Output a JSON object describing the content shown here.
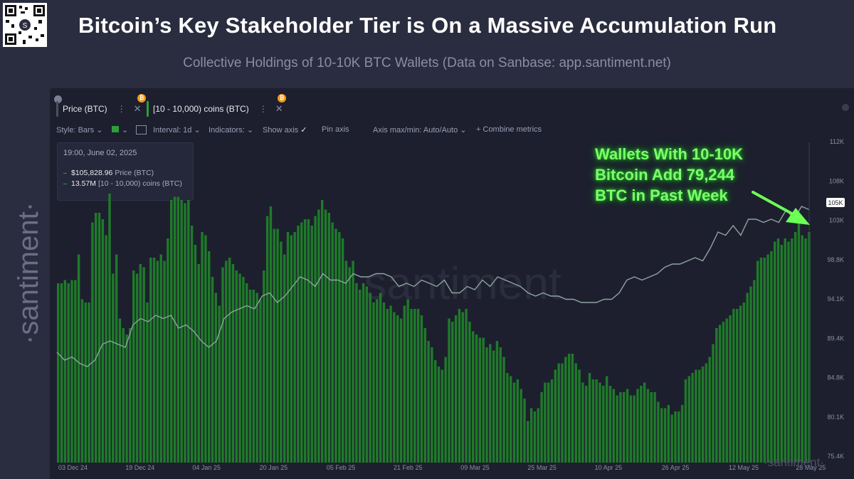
{
  "header": {
    "title": "Bitcoin’s Key Stakeholder Tier is On a Massive Accumulation Run",
    "subtitle": "Collective Holdings of 10-10K BTC Wallets (Data on Sanbase: app.santiment.net)"
  },
  "brand": {
    "side_logo": "·santiment·",
    "watermark": "santiment",
    "corner_logo": "·santiment·"
  },
  "metrics": [
    {
      "label": "Price (BTC)",
      "color": "#4a4f63",
      "badge": "lock-icon"
    },
    {
      "label": "[10 - 10,000) coins (BTC)",
      "color": "#2e9d3a",
      "badge": "bitcoin-icon"
    }
  ],
  "toolbar": {
    "style_label": "Style: Bars",
    "interval_label": "Interval: 1d",
    "indicators_label": "Indicators:",
    "show_axis_label": "Show axis",
    "pin_axis_label": "Pin axis",
    "axis_label": "Axis max/min: Auto/Auto",
    "combine_label": "Combine metrics"
  },
  "tooltip": {
    "date": "19:00, June 02, 2025",
    "price_value": "$105,828.96",
    "price_label": "Price (BTC)",
    "holdings_value": "13.57M",
    "holdings_label": "[10 - 10,000) coins (BTC)"
  },
  "annotation": {
    "line1": "Wallets With 10-10K",
    "line2": "Bitcoin  Add 79,244",
    "line3": "BTC in Past Week"
  },
  "colors": {
    "accent": "#7bff6a",
    "bar": "#1f7a2a",
    "line": "#8fa5a0",
    "background": "#1d1f2e",
    "btc": "#f29b1d"
  },
  "chart_data": {
    "type": "bar",
    "x_tick_labels": [
      "03 Dec 24",
      "19 Dec 24",
      "04 Jan 25",
      "20 Jan 25",
      "05 Feb 25",
      "21 Feb 25",
      "09 Mar 25",
      "25 Mar 25",
      "10 Apr 25",
      "26 Apr 25",
      "12 May 25",
      "28 May 25"
    ],
    "y_tick_labels": [
      "112K",
      "108K",
      "103K",
      "98.8K",
      "94.1K",
      "89.4K",
      "84.8K",
      "80.1K",
      "75.4K"
    ],
    "ylim": [
      74000,
      112000
    ],
    "current_price_label": "105K",
    "price_series_name": "Price (BTC)",
    "holdings_series_name": "[10 - 10,000) coins (BTC)",
    "bar_heights": [
      0.56,
      0.56,
      0.57,
      0.56,
      0.57,
      0.57,
      0.65,
      0.51,
      0.5,
      0.5,
      0.75,
      0.78,
      0.78,
      0.76,
      0.71,
      0.84,
      0.59,
      0.65,
      0.45,
      0.42,
      0.4,
      0.42,
      0.6,
      0.59,
      0.62,
      0.61,
      0.5,
      0.64,
      0.64,
      0.63,
      0.65,
      0.63,
      0.7,
      0.82,
      0.83,
      0.83,
      0.82,
      0.81,
      0.82,
      0.74,
      0.68,
      0.62,
      0.72,
      0.71,
      0.66,
      0.58,
      0.53,
      0.49,
      0.61,
      0.63,
      0.64,
      0.62,
      0.6,
      0.59,
      0.58,
      0.56,
      0.54,
      0.54,
      0.53,
      0.51,
      0.6,
      0.77,
      0.8,
      0.73,
      0.73,
      0.69,
      0.65,
      0.72,
      0.71,
      0.72,
      0.74,
      0.75,
      0.76,
      0.76,
      0.74,
      0.77,
      0.79,
      0.82,
      0.79,
      0.78,
      0.75,
      0.73,
      0.72,
      0.7,
      0.63,
      0.61,
      0.63,
      0.56,
      0.54,
      0.56,
      0.55,
      0.53,
      0.5,
      0.51,
      0.53,
      0.5,
      0.48,
      0.49,
      0.47,
      0.46,
      0.45,
      0.49,
      0.51,
      0.48,
      0.48,
      0.48,
      0.46,
      0.42,
      0.38,
      0.36,
      0.32,
      0.3,
      0.29,
      0.33,
      0.45,
      0.44,
      0.46,
      0.48,
      0.47,
      0.48,
      0.44,
      0.41,
      0.4,
      0.39,
      0.39,
      0.36,
      0.37,
      0.35,
      0.38,
      0.36,
      0.33,
      0.28,
      0.27,
      0.25,
      0.26,
      0.23,
      0.2,
      0.13,
      0.17,
      0.16,
      0.17,
      0.22,
      0.25,
      0.25,
      0.26,
      0.29,
      0.31,
      0.31,
      0.33,
      0.34,
      0.34,
      0.31,
      0.29,
      0.25,
      0.24,
      0.28,
      0.26,
      0.26,
      0.25,
      0.24,
      0.27,
      0.24,
      0.23,
      0.21,
      0.22,
      0.22,
      0.23,
      0.21,
      0.21,
      0.23,
      0.24,
      0.25,
      0.23,
      0.22,
      0.22,
      0.19,
      0.17,
      0.17,
      0.18,
      0.15,
      0.16,
      0.16,
      0.18,
      0.26,
      0.27,
      0.28,
      0.29,
      0.29,
      0.3,
      0.31,
      0.33,
      0.37,
      0.42,
      0.43,
      0.44,
      0.45,
      0.46,
      0.48,
      0.48,
      0.49,
      0.5,
      0.53,
      0.55,
      0.57,
      0.63,
      0.64,
      0.64,
      0.65,
      0.66,
      0.69,
      0.7,
      0.68,
      0.7,
      0.69,
      0.7,
      0.72,
      0.75,
      0.71,
      0.7,
      0.72
    ],
    "price_curve": [
      0.345,
      0.32,
      0.33,
      0.31,
      0.3,
      0.32,
      0.37,
      0.38,
      0.37,
      0.36,
      0.43,
      0.45,
      0.44,
      0.46,
      0.45,
      0.46,
      0.42,
      0.43,
      0.41,
      0.38,
      0.36,
      0.38,
      0.45,
      0.47,
      0.48,
      0.49,
      0.48,
      0.52,
      0.53,
      0.5,
      0.52,
      0.55,
      0.58,
      0.57,
      0.55,
      0.59,
      0.57,
      0.57,
      0.56,
      0.59,
      0.58,
      0.58,
      0.59,
      0.59,
      0.58,
      0.55,
      0.56,
      0.55,
      0.57,
      0.56,
      0.55,
      0.57,
      0.53,
      0.53,
      0.55,
      0.54,
      0.57,
      0.55,
      0.58,
      0.57,
      0.56,
      0.55,
      0.53,
      0.52,
      0.53,
      0.52,
      0.52,
      0.51,
      0.51,
      0.5,
      0.5,
      0.5,
      0.51,
      0.51,
      0.53,
      0.57,
      0.58,
      0.57,
      0.58,
      0.59,
      0.61,
      0.62,
      0.62,
      0.63,
      0.64,
      0.63,
      0.67,
      0.72,
      0.71,
      0.74,
      0.71,
      0.76,
      0.76,
      0.75,
      0.76,
      0.75,
      0.79,
      0.76,
      0.8,
      0.79
    ]
  }
}
